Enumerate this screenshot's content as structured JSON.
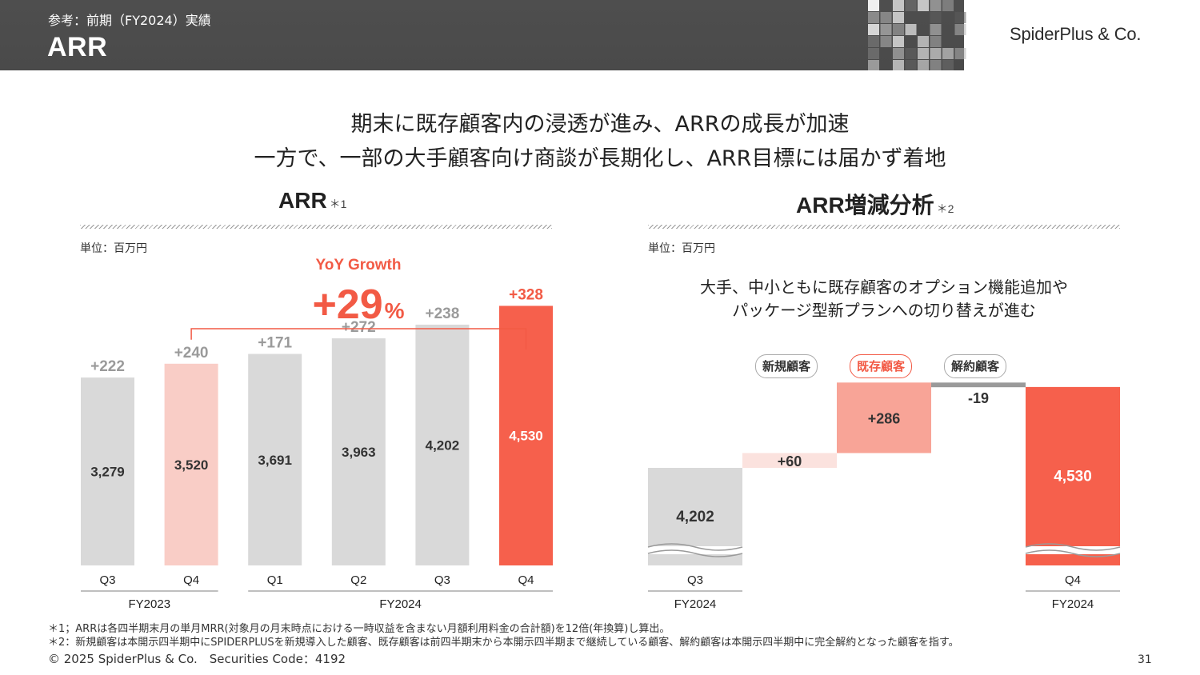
{
  "header": {
    "subtitle": "参考：前期（FY2024）実績",
    "title": "ARR",
    "logo": "SpiderPlus & Co."
  },
  "headline": {
    "line1": "期末に既存顧客内の浸透が進み、ARRの成長が加速",
    "line2": "一方で、一部の大手顧客向け商談が長期化し、ARR目標には届かず着地"
  },
  "left_panel": {
    "title": "ARR",
    "note": "＊1",
    "unit": "単位：百万円",
    "yoy_label": "YoY Growth",
    "yoy_value": "+29",
    "yoy_unit": "%"
  },
  "right_panel": {
    "title": "ARR増減分析",
    "note": "＊2",
    "unit": "単位：百万円",
    "desc_line1": "大手、中小ともに既存顧客のオプション機能追加や",
    "desc_line2": "パッケージ型新プランへの切り替えが進む"
  },
  "chart_data": [
    {
      "type": "bar",
      "title": "ARR",
      "categories": [
        "Q3",
        "Q4",
        "Q1",
        "Q2",
        "Q3",
        "Q4"
      ],
      "groups": [
        {
          "label": "FY2023",
          "categories": [
            "Q3",
            "Q4"
          ]
        },
        {
          "label": "FY2024",
          "categories": [
            "Q1",
            "Q2",
            "Q3",
            "Q4"
          ]
        }
      ],
      "values": [
        3279,
        3520,
        3691,
        3963,
        4202,
        4530
      ],
      "value_labels": [
        "3,279",
        "3,520",
        "3,691",
        "3,963",
        "4,202",
        "4,530"
      ],
      "increase_labels": [
        "+222",
        "+240",
        "+171",
        "+272",
        "+238",
        "+328"
      ],
      "colors": [
        "#d9d9d9",
        "#f9cdc6",
        "#d9d9d9",
        "#d9d9d9",
        "#d9d9d9",
        "#f6604c"
      ],
      "accent_color": "#f25a45"
    },
    {
      "type": "waterfall",
      "title": "ARR増減分析",
      "steps": [
        {
          "label": "Q3",
          "group": "FY2024",
          "value": 4202,
          "value_label": "4,202",
          "kind": "total",
          "color": "#d9d9d9"
        },
        {
          "label": "新規顧客",
          "value": 60,
          "value_label": "+60",
          "kind": "delta",
          "color": "#fbe2de"
        },
        {
          "label": "既存顧客",
          "value": 286,
          "value_label": "+286",
          "kind": "delta",
          "color": "#f8a497"
        },
        {
          "label": "解約顧客",
          "value": -19,
          "value_label": "-19",
          "kind": "delta",
          "color": "#9a9a9a"
        },
        {
          "label": "Q4",
          "group": "FY2024",
          "value": 4530,
          "value_label": "4,530",
          "kind": "total",
          "color": "#f6604c"
        }
      ]
    }
  ],
  "footnotes": {
    "note1": "＊1；ARRは各四半期末月の単月MRR(対象月の月末時点における一時収益を含まない月額利用料金の合計額)を12倍(年換算)し算出。",
    "note2": "＊2：新規顧客は本開示四半期中にSPIDERPLUSを新規導入した顧客、既存顧客は前四半期末から本開示四半期まで継続している顧客、解約顧客は本開示四半期中に完全解約となった顧客を指す。"
  },
  "footer": {
    "copyright": "© 2025 SpiderPlus & Co.　Securities Code：4192",
    "page": "31"
  }
}
